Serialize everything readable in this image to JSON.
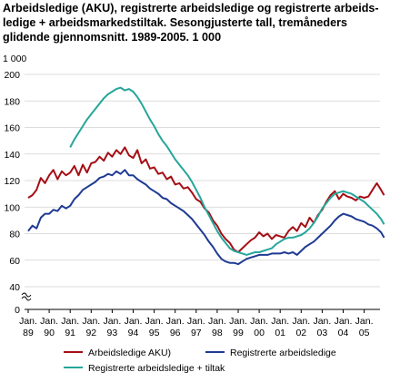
{
  "title": "Arbeidsledige (AKU), registrerte arbeidsledige og registrerte arbeids­ledige + arbeidsmarkedstiltak. Sesongjusterte tall, tremåneders glidende gjennomsnitt. 1989-2005. 1 000",
  "chart_data": {
    "type": "line",
    "title": "Arbeidsledige (AKU), registrerte arbeidsledige og registrerte arbeids­ledige + arbeidsmarkedstiltak. Sesongjusterte tall, tremåneders glidende gjennomsnitt. 1989-2005. 1 000",
    "unit_label": "1 000",
    "xlabel": "",
    "ylabel": "",
    "ylim": [
      0,
      200
    ],
    "yticks": [
      0,
      40,
      60,
      80,
      100,
      120,
      140,
      160,
      180,
      200
    ],
    "ytick_labels": [
      "0",
      "40",
      "60",
      "80",
      "100",
      "120",
      "140",
      "160",
      "180",
      "200"
    ],
    "axis_break": [
      0,
      40
    ],
    "xlim": [
      1989,
      2006
    ],
    "xticks": [
      1989,
      1990,
      1991,
      1992,
      1993,
      1994,
      1995,
      1996,
      1997,
      1998,
      1999,
      2000,
      2001,
      2002,
      2003,
      2004,
      2005
    ],
    "xtick_labels": [
      [
        "Jan.",
        "89"
      ],
      [
        "Jan.",
        "90"
      ],
      [
        "Jan.",
        "91"
      ],
      [
        "Jan.",
        "92"
      ],
      [
        "Jan.",
        "93"
      ],
      [
        "Jan.",
        "94"
      ],
      [
        "Jan.",
        "95"
      ],
      [
        "Jan.",
        "96"
      ],
      [
        "Jan.",
        "97"
      ],
      [
        "Jan.",
        "98"
      ],
      [
        "Jan.",
        "99"
      ],
      [
        "Jan.",
        "00"
      ],
      [
        "Jan.",
        "01"
      ],
      [
        "Jan.",
        "02"
      ],
      [
        "Jan.",
        "03"
      ],
      [
        "Jan.",
        "04"
      ],
      [
        "Jan.",
        "05"
      ]
    ],
    "grid": "horizontal",
    "legend_position": "bottom",
    "series": [
      {
        "name": "Arbeidsledige AKU)",
        "color": "#a50f15",
        "points": [
          [
            1989.0,
            107
          ],
          [
            1989.2,
            109
          ],
          [
            1989.4,
            113
          ],
          [
            1989.6,
            122
          ],
          [
            1989.8,
            118
          ],
          [
            1990.0,
            124
          ],
          [
            1990.2,
            128
          ],
          [
            1990.4,
            121
          ],
          [
            1990.6,
            127
          ],
          [
            1990.8,
            124
          ],
          [
            1991.0,
            126
          ],
          [
            1991.2,
            131
          ],
          [
            1991.4,
            124
          ],
          [
            1991.6,
            132
          ],
          [
            1991.8,
            126
          ],
          [
            1992.0,
            133
          ],
          [
            1992.2,
            134
          ],
          [
            1992.4,
            138
          ],
          [
            1992.6,
            135
          ],
          [
            1992.8,
            141
          ],
          [
            1993.0,
            138
          ],
          [
            1993.2,
            143
          ],
          [
            1993.4,
            140
          ],
          [
            1993.6,
            145
          ],
          [
            1993.8,
            139
          ],
          [
            1994.0,
            137
          ],
          [
            1994.2,
            143
          ],
          [
            1994.4,
            133
          ],
          [
            1994.6,
            136
          ],
          [
            1994.8,
            129
          ],
          [
            1995.0,
            130
          ],
          [
            1995.2,
            125
          ],
          [
            1995.4,
            126
          ],
          [
            1995.6,
            121
          ],
          [
            1995.8,
            123
          ],
          [
            1996.0,
            117
          ],
          [
            1996.2,
            118
          ],
          [
            1996.4,
            114
          ],
          [
            1996.6,
            115
          ],
          [
            1996.8,
            111
          ],
          [
            1997.0,
            106
          ],
          [
            1997.2,
            104
          ],
          [
            1997.4,
            99
          ],
          [
            1997.6,
            96
          ],
          [
            1997.8,
            90
          ],
          [
            1998.0,
            86
          ],
          [
            1998.2,
            80
          ],
          [
            1998.4,
            76
          ],
          [
            1998.6,
            73
          ],
          [
            1998.8,
            68
          ],
          [
            1999.0,
            66
          ],
          [
            1999.2,
            69
          ],
          [
            1999.4,
            72
          ],
          [
            1999.6,
            75
          ],
          [
            1999.8,
            77
          ],
          [
            2000.0,
            81
          ],
          [
            2000.2,
            78
          ],
          [
            2000.4,
            80
          ],
          [
            2000.6,
            76
          ],
          [
            2000.8,
            79
          ],
          [
            2001.0,
            78
          ],
          [
            2001.2,
            77
          ],
          [
            2001.4,
            82
          ],
          [
            2001.6,
            85
          ],
          [
            2001.8,
            82
          ],
          [
            2002.0,
            88
          ],
          [
            2002.2,
            85
          ],
          [
            2002.4,
            92
          ],
          [
            2002.6,
            88
          ],
          [
            2002.8,
            94
          ],
          [
            2003.0,
            98
          ],
          [
            2003.2,
            104
          ],
          [
            2003.4,
            109
          ],
          [
            2003.6,
            112
          ],
          [
            2003.8,
            106
          ],
          [
            2004.0,
            110
          ],
          [
            2004.2,
            108
          ],
          [
            2004.4,
            107
          ],
          [
            2004.6,
            105
          ],
          [
            2004.8,
            108
          ],
          [
            2005.0,
            107
          ],
          [
            2005.2,
            108
          ],
          [
            2005.4,
            113
          ],
          [
            2005.6,
            118
          ],
          [
            2005.8,
            113
          ],
          [
            2005.95,
            109
          ]
        ]
      },
      {
        "name": "Registrerte arbeidsledige",
        "color": "#1f3a93",
        "points": [
          [
            1989.0,
            82
          ],
          [
            1989.2,
            86
          ],
          [
            1989.4,
            84
          ],
          [
            1989.6,
            92
          ],
          [
            1989.8,
            95
          ],
          [
            1990.0,
            95
          ],
          [
            1990.2,
            98
          ],
          [
            1990.4,
            97
          ],
          [
            1990.6,
            101
          ],
          [
            1990.8,
            99
          ],
          [
            1991.0,
            101
          ],
          [
            1991.2,
            106
          ],
          [
            1991.4,
            109
          ],
          [
            1991.6,
            113
          ],
          [
            1991.8,
            115
          ],
          [
            1992.0,
            117
          ],
          [
            1992.2,
            119
          ],
          [
            1992.4,
            122
          ],
          [
            1992.6,
            123
          ],
          [
            1992.8,
            125
          ],
          [
            1993.0,
            124
          ],
          [
            1993.2,
            127
          ],
          [
            1993.4,
            125
          ],
          [
            1993.6,
            128
          ],
          [
            1993.8,
            124
          ],
          [
            1994.0,
            124
          ],
          [
            1994.2,
            121
          ],
          [
            1994.4,
            119
          ],
          [
            1994.6,
            117
          ],
          [
            1994.8,
            114
          ],
          [
            1995.0,
            112
          ],
          [
            1995.2,
            110
          ],
          [
            1995.4,
            107
          ],
          [
            1995.6,
            106
          ],
          [
            1995.8,
            103
          ],
          [
            1996.0,
            101
          ],
          [
            1996.2,
            99
          ],
          [
            1996.4,
            97
          ],
          [
            1996.6,
            94
          ],
          [
            1996.8,
            91
          ],
          [
            1997.0,
            87
          ],
          [
            1997.2,
            83
          ],
          [
            1997.4,
            79
          ],
          [
            1997.6,
            74
          ],
          [
            1997.8,
            70
          ],
          [
            1998.0,
            65
          ],
          [
            1998.2,
            61
          ],
          [
            1998.4,
            59
          ],
          [
            1998.6,
            58
          ],
          [
            1998.8,
            58
          ],
          [
            1999.0,
            57
          ],
          [
            1999.2,
            59
          ],
          [
            1999.4,
            61
          ],
          [
            1999.6,
            62
          ],
          [
            1999.8,
            63
          ],
          [
            2000.0,
            64
          ],
          [
            2000.2,
            64
          ],
          [
            2000.4,
            64
          ],
          [
            2000.6,
            65
          ],
          [
            2000.8,
            65
          ],
          [
            2001.0,
            65
          ],
          [
            2001.2,
            66
          ],
          [
            2001.4,
            65
          ],
          [
            2001.6,
            66
          ],
          [
            2001.8,
            64
          ],
          [
            2002.0,
            67
          ],
          [
            2002.2,
            70
          ],
          [
            2002.4,
            72
          ],
          [
            2002.6,
            74
          ],
          [
            2002.8,
            77
          ],
          [
            2003.0,
            80
          ],
          [
            2003.2,
            83
          ],
          [
            2003.4,
            86
          ],
          [
            2003.6,
            90
          ],
          [
            2003.8,
            93
          ],
          [
            2004.0,
            95
          ],
          [
            2004.2,
            94
          ],
          [
            2004.4,
            93
          ],
          [
            2004.6,
            91
          ],
          [
            2004.8,
            90
          ],
          [
            2005.0,
            89
          ],
          [
            2005.2,
            87
          ],
          [
            2005.4,
            86
          ],
          [
            2005.6,
            84
          ],
          [
            2005.8,
            81
          ],
          [
            2005.95,
            77
          ]
        ]
      },
      {
        "name": "Registrerte arbeidsledige + tiltak",
        "color": "#26a69a",
        "points": [
          [
            1991.0,
            145
          ],
          [
            1991.2,
            151
          ],
          [
            1991.4,
            156
          ],
          [
            1991.6,
            161
          ],
          [
            1991.8,
            166
          ],
          [
            1992.0,
            170
          ],
          [
            1992.2,
            174
          ],
          [
            1992.4,
            178
          ],
          [
            1992.6,
            182
          ],
          [
            1992.8,
            185
          ],
          [
            1993.0,
            187
          ],
          [
            1993.2,
            189
          ],
          [
            1993.4,
            190
          ],
          [
            1993.6,
            188
          ],
          [
            1993.8,
            189
          ],
          [
            1994.0,
            187
          ],
          [
            1994.2,
            183
          ],
          [
            1994.4,
            178
          ],
          [
            1994.6,
            172
          ],
          [
            1994.8,
            166
          ],
          [
            1995.0,
            161
          ],
          [
            1995.2,
            155
          ],
          [
            1995.4,
            150
          ],
          [
            1995.6,
            146
          ],
          [
            1995.8,
            141
          ],
          [
            1996.0,
            136
          ],
          [
            1996.2,
            132
          ],
          [
            1996.4,
            128
          ],
          [
            1996.6,
            124
          ],
          [
            1996.8,
            119
          ],
          [
            1997.0,
            113
          ],
          [
            1997.2,
            107
          ],
          [
            1997.4,
            100
          ],
          [
            1997.6,
            94
          ],
          [
            1997.8,
            88
          ],
          [
            1998.0,
            82
          ],
          [
            1998.2,
            77
          ],
          [
            1998.4,
            73
          ],
          [
            1998.6,
            69
          ],
          [
            1998.8,
            67
          ],
          [
            1999.0,
            66
          ],
          [
            1999.2,
            65
          ],
          [
            1999.4,
            64
          ],
          [
            1999.6,
            65
          ],
          [
            1999.8,
            66
          ],
          [
            2000.0,
            66
          ],
          [
            2000.2,
            67
          ],
          [
            2000.4,
            68
          ],
          [
            2000.6,
            69
          ],
          [
            2000.8,
            72
          ],
          [
            2001.0,
            74
          ],
          [
            2001.2,
            76
          ],
          [
            2001.4,
            77
          ],
          [
            2001.6,
            77
          ],
          [
            2001.8,
            78
          ],
          [
            2002.0,
            79
          ],
          [
            2002.2,
            81
          ],
          [
            2002.4,
            84
          ],
          [
            2002.6,
            88
          ],
          [
            2002.8,
            93
          ],
          [
            2003.0,
            99
          ],
          [
            2003.2,
            103
          ],
          [
            2003.4,
            107
          ],
          [
            2003.6,
            110
          ],
          [
            2003.8,
            111
          ],
          [
            2004.0,
            112
          ],
          [
            2004.2,
            111
          ],
          [
            2004.4,
            110
          ],
          [
            2004.6,
            108
          ],
          [
            2004.8,
            106
          ],
          [
            2005.0,
            104
          ],
          [
            2005.2,
            101
          ],
          [
            2005.4,
            98
          ],
          [
            2005.6,
            95
          ],
          [
            2005.8,
            91
          ],
          [
            2005.95,
            87
          ]
        ]
      }
    ]
  }
}
